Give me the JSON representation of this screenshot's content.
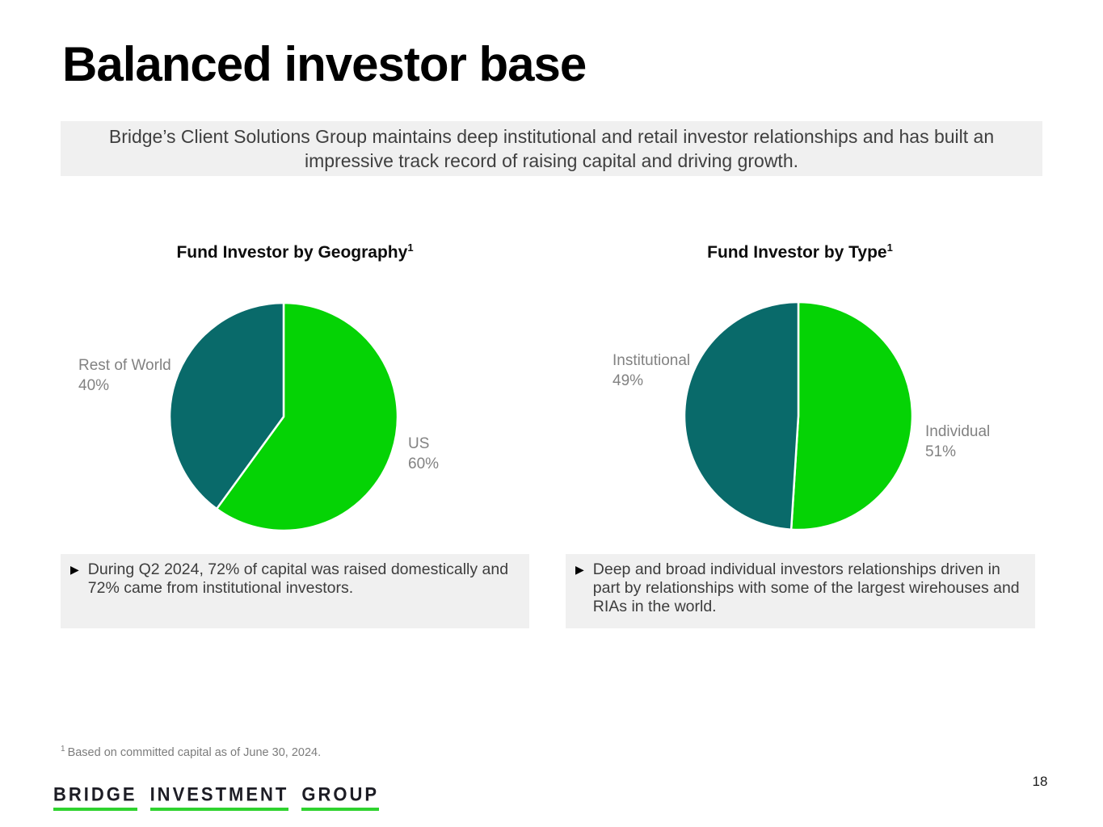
{
  "slide": {
    "title": "Balanced investor base",
    "banner": "Bridge’s Client Solutions Group maintains deep institutional and retail investor relationships and has built an impressive track record of raising capital and driving growth.",
    "footnote_superscript": "1",
    "footnote_text": "Based on committed capital as of June 30, 2024.",
    "page_number": "18"
  },
  "colors": {
    "pie_green": "#05D305",
    "pie_teal": "#096A6A",
    "panel_bg": "#F0F0F0",
    "label_gray": "#828282",
    "logo_underline_green": "#2FD32F"
  },
  "chart_data": [
    {
      "type": "pie",
      "title": "Fund Investor by Geography",
      "title_superscript": "1",
      "legend_position": "outside-labels",
      "slices": [
        {
          "label": "US",
          "pct": "60%",
          "value": 60,
          "color": "#05D305"
        },
        {
          "label": "Rest of World",
          "pct": "40%",
          "value": 40,
          "color": "#096A6A"
        }
      ]
    },
    {
      "type": "pie",
      "title": "Fund Investor by Type",
      "title_superscript": "1",
      "legend_position": "outside-labels",
      "slices": [
        {
          "label": "Individual",
          "pct": "51%",
          "value": 51,
          "color": "#05D305"
        },
        {
          "label": "Institutional",
          "pct": "49%",
          "value": 49,
          "color": "#096A6A"
        }
      ]
    }
  ],
  "bullets": [
    {
      "marker": "▶",
      "text": "During Q2 2024, 72% of capital was raised domestically and 72% came from institutional investors."
    },
    {
      "marker": "▶",
      "text": "Deep and broad individual investors relationships driven in part by relationships with some of the largest wirehouses and RIAs in the world."
    }
  ],
  "logo": {
    "words": [
      "BRIDGE",
      "INVESTMENT",
      "GROUP"
    ]
  }
}
